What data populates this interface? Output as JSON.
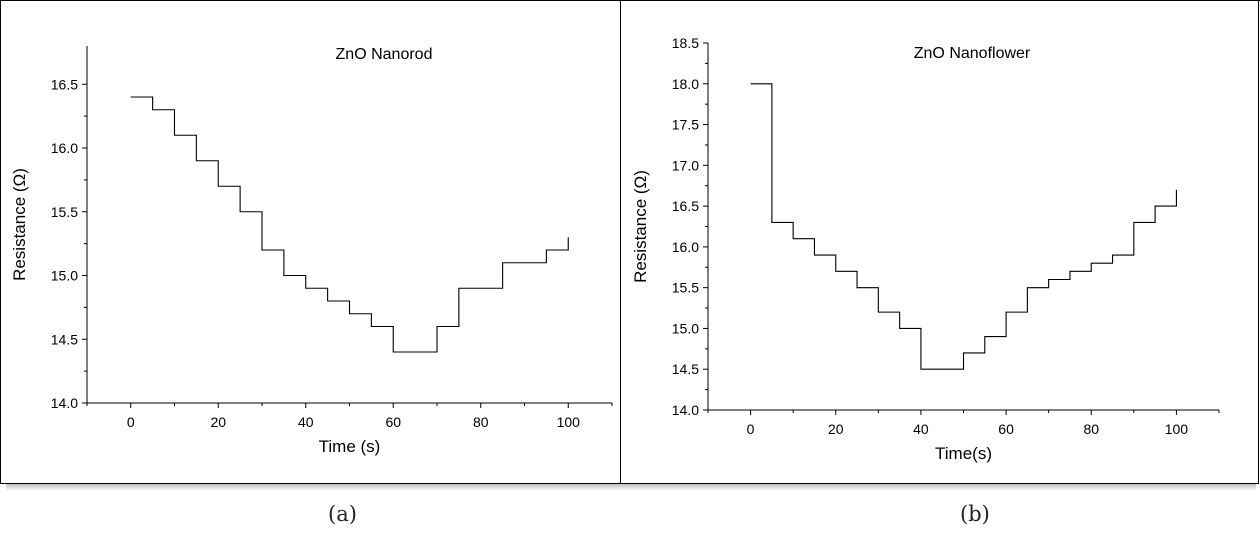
{
  "captions": {
    "a": "(a)",
    "b": "(b)"
  },
  "chart_data": [
    {
      "type": "line",
      "step": "post",
      "title": "ZnO Nanorod",
      "xlabel": "Time (s)",
      "ylabel": "Resistance (Ω)",
      "xlim": [
        -10,
        110
      ],
      "ylim": [
        14.0,
        16.8
      ],
      "xticks": [
        0,
        20,
        40,
        60,
        80,
        100
      ],
      "yticks": [
        14.0,
        14.5,
        15.0,
        15.5,
        16.0,
        16.5
      ],
      "xtick_labels": [
        "0",
        "20",
        "40",
        "60",
        "80",
        "100"
      ],
      "ytick_labels": [
        "14.0",
        "14.5",
        "15.0",
        "15.5",
        "16.0",
        "16.5"
      ],
      "series": [
        {
          "x": [
            0,
            5,
            10,
            15,
            20,
            25,
            30,
            35,
            40,
            45,
            50,
            55,
            60,
            65,
            70,
            75,
            80,
            85,
            90,
            95,
            100
          ],
          "y": [
            16.4,
            16.3,
            16.1,
            15.9,
            15.7,
            15.5,
            15.2,
            15.0,
            14.9,
            14.8,
            14.7,
            14.6,
            14.4,
            14.4,
            14.6,
            14.9,
            14.9,
            15.1,
            15.1,
            15.2,
            15.3
          ]
        }
      ]
    },
    {
      "type": "line",
      "step": "post",
      "title": "ZnO Nanoflower",
      "xlabel": "Time(s)",
      "ylabel": "Resistance (Ω)",
      "xlim": [
        -10,
        110
      ],
      "ylim": [
        14.0,
        18.5
      ],
      "xticks": [
        0,
        20,
        40,
        60,
        80,
        100
      ],
      "yticks": [
        14.0,
        14.5,
        15.0,
        15.5,
        16.0,
        16.5,
        17.0,
        17.5,
        18.0,
        18.5
      ],
      "xtick_labels": [
        "0",
        "20",
        "40",
        "60",
        "80",
        "100"
      ],
      "ytick_labels": [
        "14.0",
        "14.5",
        "15.0",
        "15.5",
        "16.0",
        "16.5",
        "17.0",
        "17.5",
        "18.0",
        "18.5"
      ],
      "series": [
        {
          "x": [
            0,
            5,
            10,
            15,
            20,
            25,
            30,
            35,
            40,
            45,
            50,
            55,
            60,
            65,
            70,
            75,
            80,
            85,
            90,
            95,
            100
          ],
          "y": [
            18.0,
            16.3,
            16.1,
            15.9,
            15.7,
            15.5,
            15.2,
            15.0,
            14.5,
            14.5,
            14.7,
            14.9,
            15.2,
            15.5,
            15.6,
            15.7,
            15.8,
            15.9,
            16.3,
            16.5,
            16.7
          ]
        }
      ]
    }
  ]
}
